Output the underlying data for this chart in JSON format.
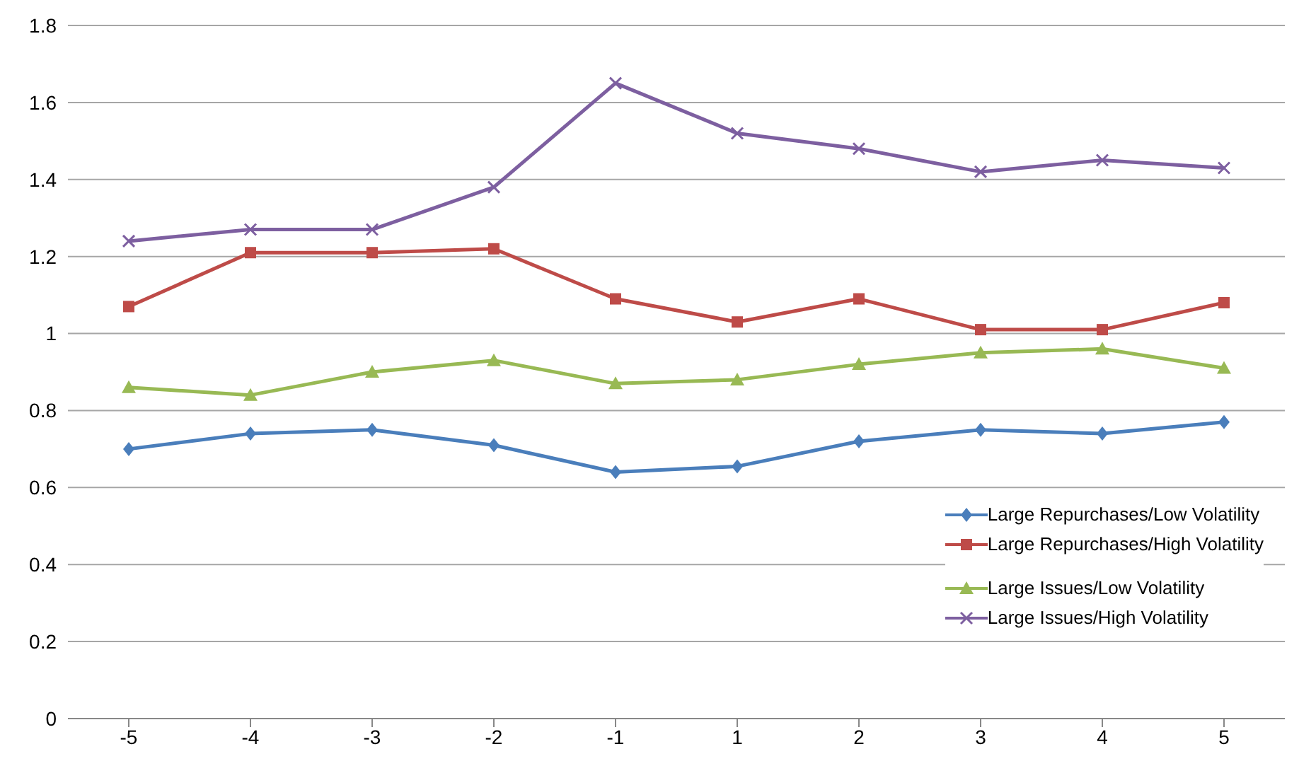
{
  "chart_data": {
    "type": "line",
    "categories": [
      "-5",
      "-4",
      "-3",
      "-2",
      "-1",
      "1",
      "2",
      "3",
      "4",
      "5"
    ],
    "series": [
      {
        "name": "Large Repurchases/Low Volatility",
        "color": "#4a7ebb",
        "marker": "diamond",
        "values": [
          0.7,
          0.74,
          0.75,
          0.71,
          0.64,
          0.655,
          0.72,
          0.75,
          0.74,
          0.77
        ]
      },
      {
        "name": "Large Repurchases/High Volatility",
        "color": "#be4b48",
        "marker": "square",
        "values": [
          1.07,
          1.21,
          1.21,
          1.22,
          1.09,
          1.03,
          1.09,
          1.01,
          1.01,
          1.08
        ]
      },
      {
        "name": "Large Issues/Low Volatility",
        "color": "#98b954",
        "marker": "triangle",
        "values": [
          0.86,
          0.84,
          0.9,
          0.93,
          0.87,
          0.88,
          0.92,
          0.95,
          0.96,
          0.91
        ]
      },
      {
        "name": "Large Issues/High Volatility",
        "color": "#7d5fa0",
        "marker": "cross",
        "values": [
          1.24,
          1.27,
          1.27,
          1.38,
          1.65,
          1.52,
          1.48,
          1.42,
          1.45,
          1.43
        ]
      }
    ],
    "ylim": [
      0,
      1.8
    ],
    "yticks": [
      0,
      0.2,
      0.4,
      0.6,
      0.8,
      1,
      1.2,
      1.4,
      1.6,
      1.8
    ],
    "grid": "y",
    "legend": "bottom right"
  }
}
